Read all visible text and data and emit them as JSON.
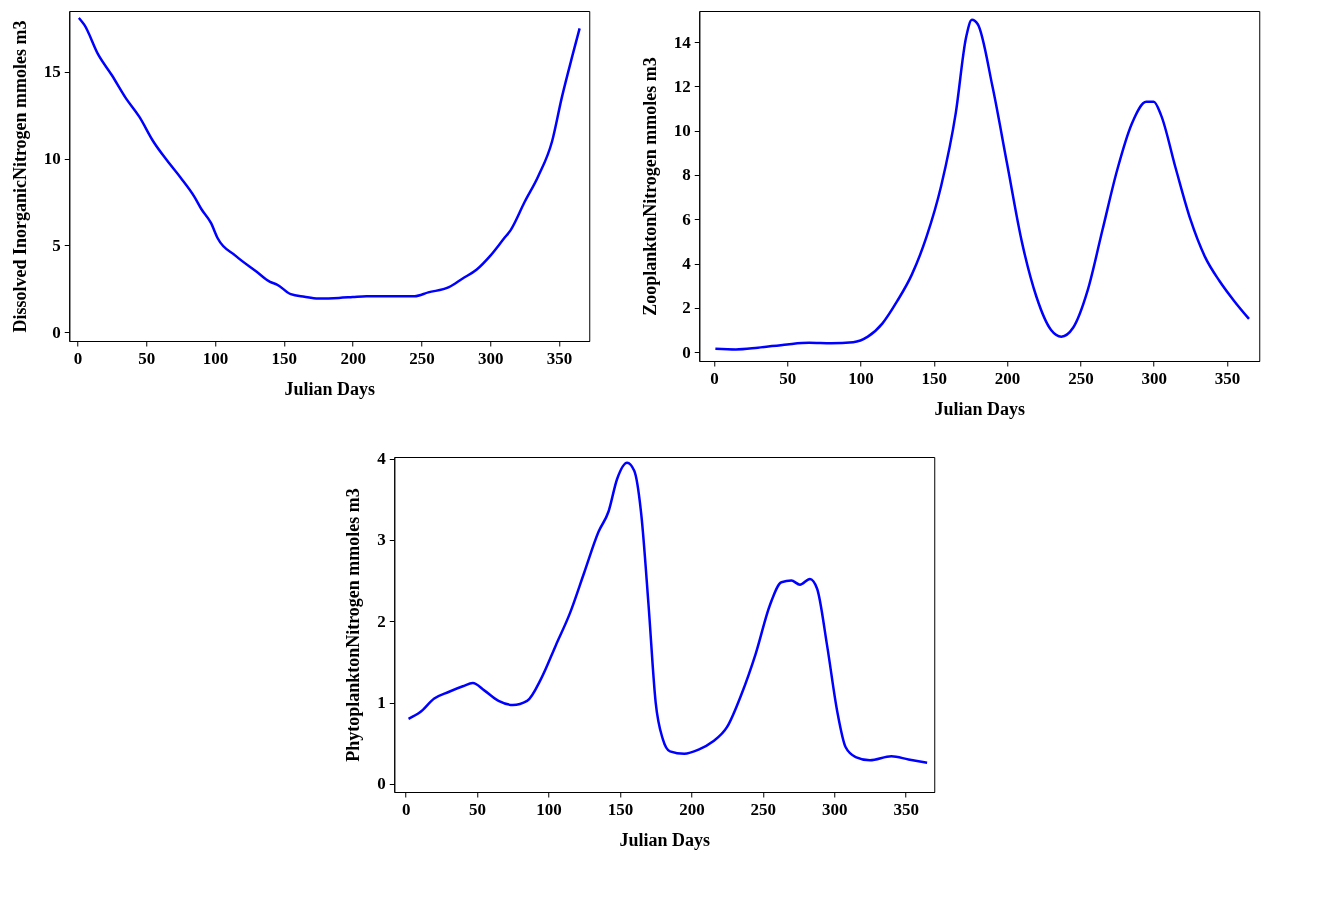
{
  "chart_data": [
    {
      "type": "line",
      "xlabel": "Julian Days",
      "ylabel": "Dissolved InorganicNitrogen mmoles m3",
      "xlim": [
        -6,
        372
      ],
      "ylim": [
        -0.5,
        18.5
      ],
      "xticks": [
        0,
        50,
        100,
        150,
        200,
        250,
        300,
        350
      ],
      "yticks": [
        0,
        5,
        10,
        15
      ],
      "color": "#0000ff",
      "x": [
        1,
        5,
        15,
        25,
        35,
        45,
        55,
        65,
        75,
        85,
        90,
        97,
        102,
        115,
        130,
        140,
        145,
        155,
        165,
        175,
        190,
        200,
        210,
        230,
        245,
        255,
        270,
        280,
        290,
        300,
        310,
        315,
        325,
        335,
        345,
        352,
        360,
        365
      ],
      "values": [
        18.1,
        17.7,
        16.0,
        14.8,
        13.5,
        12.4,
        11.0,
        9.9,
        8.9,
        7.8,
        7.1,
        6.3,
        5.4,
        4.4,
        3.5,
        2.9,
        2.75,
        2.2,
        2.05,
        1.95,
        1.98,
        2.03,
        2.08,
        2.08,
        2.08,
        2.3,
        2.6,
        3.1,
        3.6,
        4.4,
        5.4,
        5.9,
        7.5,
        9.0,
        11.0,
        13.5,
        16.0,
        17.5
      ]
    },
    {
      "type": "line",
      "xlabel": "Julian Days",
      "ylabel": "ZooplanktonNitrogen mmoles m3",
      "xlim": [
        -10,
        372
      ],
      "ylim": [
        -0.4,
        15.4
      ],
      "xticks": [
        0,
        50,
        100,
        150,
        200,
        250,
        300,
        350
      ],
      "yticks": [
        0,
        2,
        4,
        6,
        8,
        10,
        12,
        14
      ],
      "color": "#0000ff",
      "x": [
        1,
        15,
        30,
        50,
        65,
        80,
        95,
        105,
        115,
        125,
        135,
        145,
        155,
        165,
        172,
        176,
        180,
        190,
        200,
        210,
        220,
        230,
        237,
        245,
        255,
        265,
        275,
        285,
        295,
        300,
        305,
        315,
        325,
        335,
        345,
        355,
        365
      ],
      "values": [
        0.15,
        0.12,
        0.2,
        0.35,
        0.42,
        0.4,
        0.45,
        0.7,
        1.3,
        2.3,
        3.5,
        5.2,
        7.5,
        10.8,
        14.2,
        15.0,
        14.8,
        12.0,
        8.5,
        5.0,
        2.5,
        1.0,
        0.7,
        1.1,
        2.8,
        5.5,
        8.2,
        10.3,
        11.3,
        11.3,
        10.7,
        8.3,
        6.0,
        4.3,
        3.2,
        2.3,
        1.5
      ]
    },
    {
      "type": "line",
      "xlabel": "Julian Days",
      "ylabel": "PhytoplanktonNitrogen mmoles m3",
      "xlim": [
        -8,
        370
      ],
      "ylim": [
        -0.1,
        4.02
      ],
      "xticks": [
        0,
        50,
        100,
        150,
        200,
        250,
        300,
        350
      ],
      "yticks": [
        0,
        1,
        2,
        3,
        4
      ],
      "color": "#0000ff",
      "x": [
        2,
        10,
        20,
        30,
        40,
        47,
        55,
        65,
        75,
        85,
        95,
        105,
        115,
        125,
        135,
        142,
        148,
        155,
        160,
        165,
        170,
        175,
        180,
        185,
        195,
        205,
        215,
        225,
        235,
        245,
        255,
        263,
        270,
        276,
        283,
        288,
        295,
        302,
        308,
        315,
        325,
        340,
        352,
        365
      ],
      "values": [
        0.8,
        0.88,
        1.05,
        1.13,
        1.2,
        1.24,
        1.15,
        1.02,
        0.97,
        1.02,
        1.3,
        1.7,
        2.1,
        2.6,
        3.1,
        3.35,
        3.75,
        3.95,
        3.85,
        3.3,
        2.2,
        1.0,
        0.55,
        0.4,
        0.37,
        0.42,
        0.52,
        0.7,
        1.1,
        1.6,
        2.2,
        2.48,
        2.5,
        2.45,
        2.52,
        2.4,
        1.7,
        0.9,
        0.45,
        0.33,
        0.29,
        0.34,
        0.3,
        0.26
      ]
    }
  ]
}
